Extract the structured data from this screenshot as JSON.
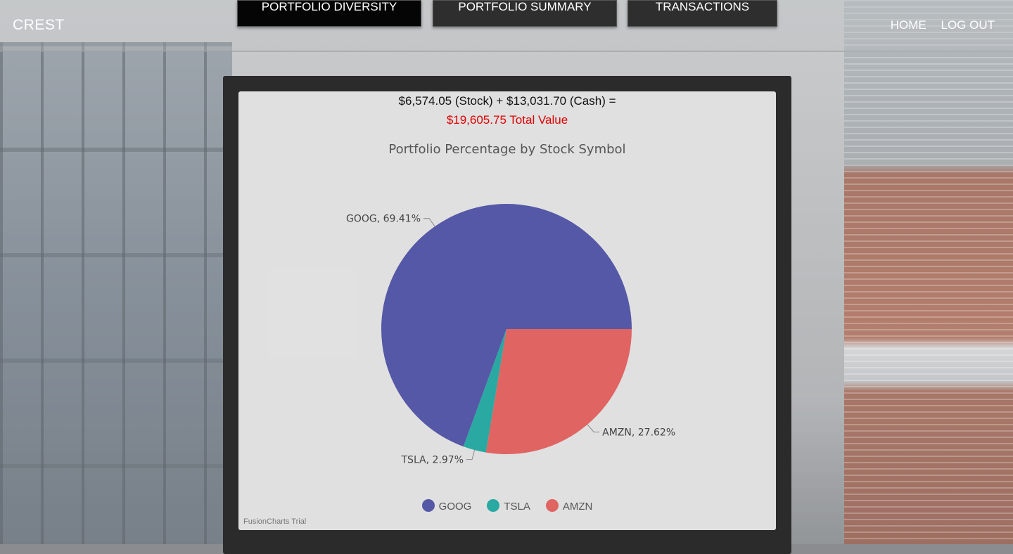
{
  "app": {
    "brand": "CREST"
  },
  "nav": {
    "tabs": [
      {
        "label": "PORTFOLIO DIVERSITY",
        "active": true
      },
      {
        "label": "PORTFOLIO SUMMARY",
        "active": false
      },
      {
        "label": "TRANSACTIONS",
        "active": false
      }
    ],
    "links": {
      "home": "HOME",
      "logout": "LOG OUT"
    }
  },
  "summary": {
    "line1": "$6,574.05 (Stock) + $13,031.70 (Cash) =",
    "line2": "$19,605.75 Total Value"
  },
  "chart_data": {
    "type": "pie",
    "title": "Portfolio Percentage by Stock Symbol",
    "categories": [
      "GOOG",
      "TSLA",
      "AMZN"
    ],
    "values": [
      69.41,
      2.97,
      27.62
    ],
    "labels": [
      "GOOG, 69.41%",
      "TSLA, 2.97%",
      "AMZN, 27.62%"
    ],
    "colors": [
      "#5558a6",
      "#2aa8a2",
      "#e06462"
    ],
    "legend": "bottom-center",
    "footer": "FusionCharts Trial"
  }
}
